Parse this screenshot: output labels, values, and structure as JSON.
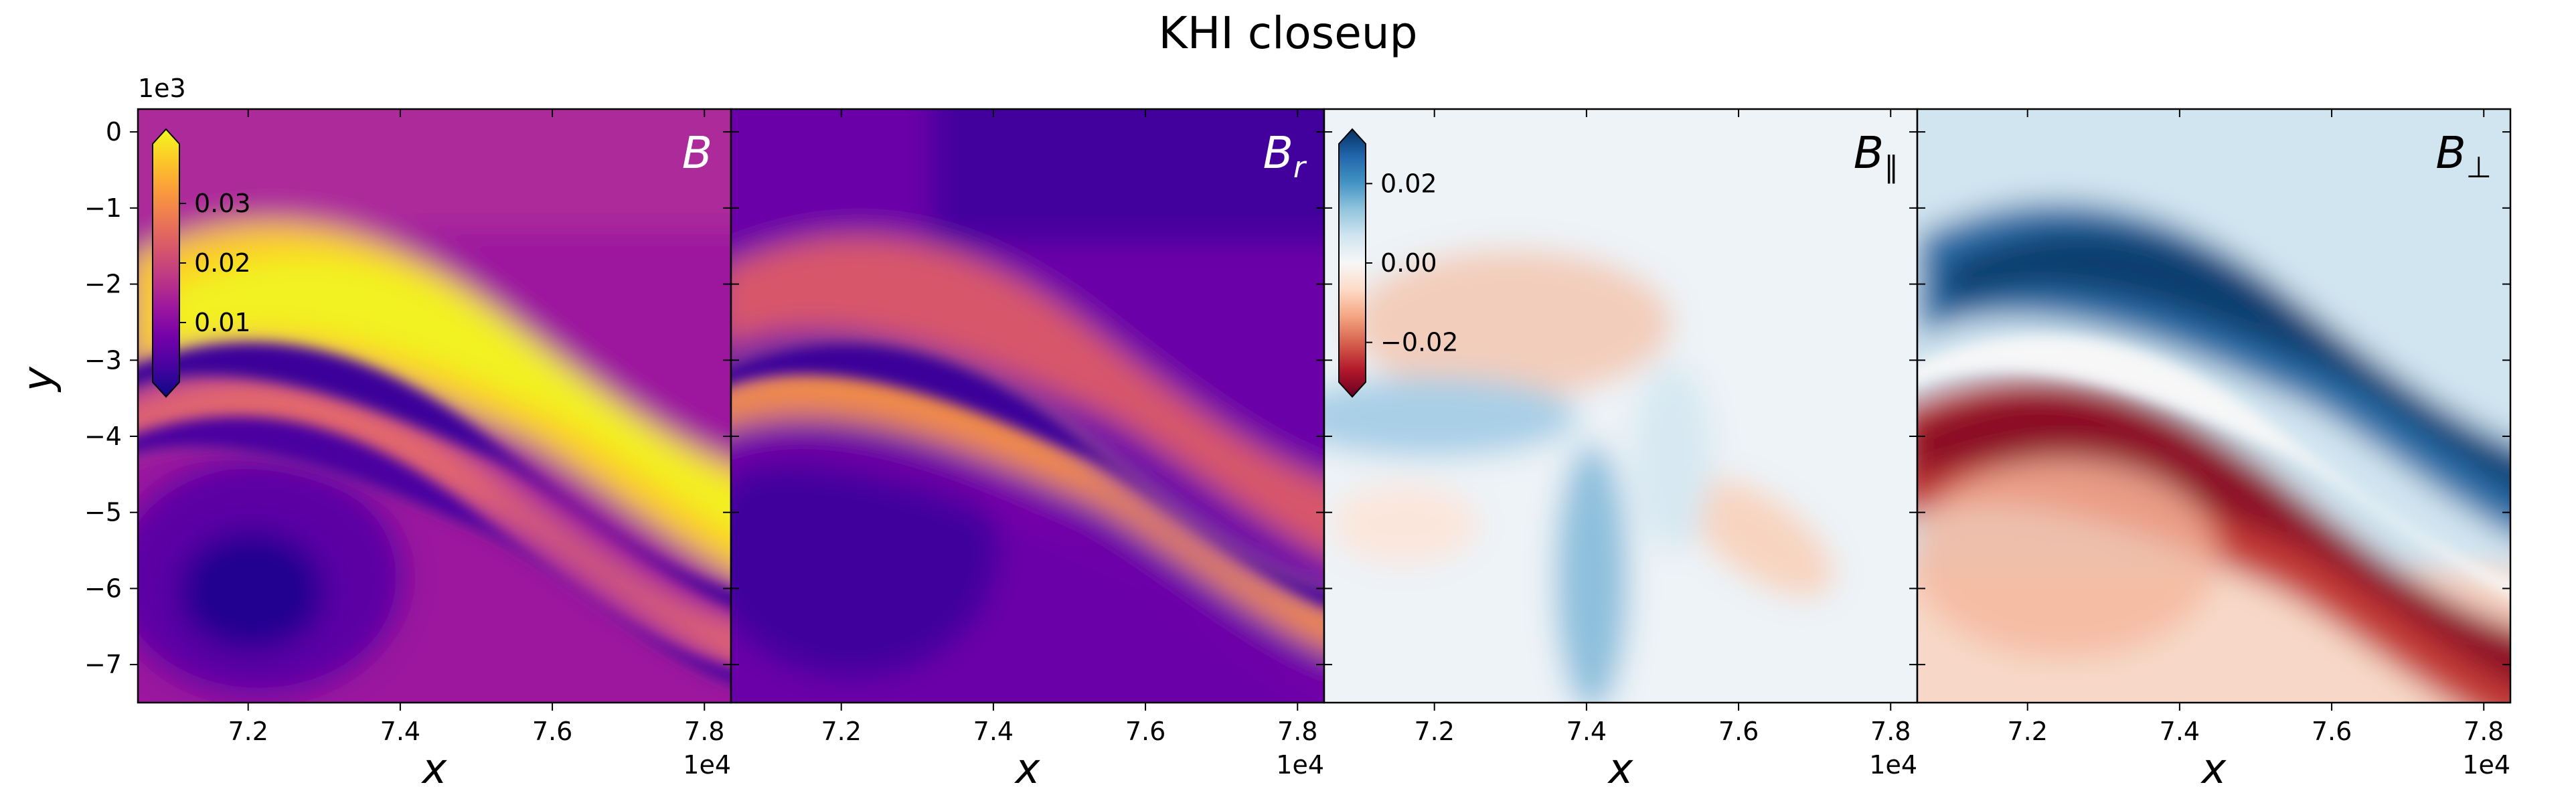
{
  "chart_data": {
    "type": "heatmap",
    "title": "KHI closeup",
    "shared_y": {
      "ylabel": "y",
      "ylim": [
        -7.5,
        0.3
      ],
      "ticks": [
        0,
        -1,
        -2,
        -3,
        -4,
        -5,
        -6,
        -7
      ],
      "tick_labels": [
        "0",
        "−1",
        "−2",
        "−3",
        "−4",
        "−5",
        "−6",
        "−7"
      ],
      "offset_text": "1e3"
    },
    "panels": [
      {
        "name": "B",
        "label_main": "B",
        "label_sub": "",
        "cmap": "plasma",
        "xlabel": "x",
        "xlim": [
          7.055,
          7.835
        ],
        "xticks": [
          7.2,
          7.4,
          7.6,
          7.8
        ],
        "xtick_labels": [
          "7.2",
          "7.4",
          "7.6",
          "7.8"
        ],
        "x_offset_text": "1e4",
        "colorbar": {
          "ticks": [
            0.01,
            0.02,
            0.03
          ],
          "tick_labels": [
            "0.01",
            "0.02",
            "0.03"
          ],
          "range": [
            0.0,
            0.04
          ]
        }
      },
      {
        "name": "B_r",
        "label_main": "B",
        "label_sub": "r",
        "cmap": "plasma",
        "xlabel": "x",
        "xlim": [
          7.055,
          7.835
        ],
        "xticks": [
          7.2,
          7.4,
          7.6,
          7.8
        ],
        "xtick_labels": [
          "7.2",
          "7.4",
          "7.6",
          "7.8"
        ],
        "x_offset_text": "1e4"
      },
      {
        "name": "B_parallel",
        "label_main": "B",
        "label_sub": "∥",
        "cmap": "RdBu",
        "xlabel": "x",
        "xlim": [
          7.055,
          7.835
        ],
        "xticks": [
          7.2,
          7.4,
          7.6,
          7.8
        ],
        "xtick_labels": [
          "7.2",
          "7.4",
          "7.6",
          "7.8"
        ],
        "x_offset_text": "1e4",
        "colorbar": {
          "ticks": [
            0.02,
            0.0,
            -0.02
          ],
          "tick_labels": [
            "0.02",
            "0.00",
            "−0.02"
          ],
          "range": [
            -0.03,
            0.03
          ]
        }
      },
      {
        "name": "B_perp",
        "label_main": "B",
        "label_sub": "⊥",
        "cmap": "RdBu",
        "xlabel": "x",
        "xlim": [
          7.055,
          7.835
        ],
        "xticks": [
          7.2,
          7.4,
          7.6,
          7.8
        ],
        "xtick_labels": [
          "7.2",
          "7.4",
          "7.6",
          "7.8"
        ],
        "x_offset_text": "1e4"
      }
    ],
    "colors": {
      "plasma_dark": "#0d0887",
      "plasma_mid": "#cc4778",
      "plasma_bright": "#f0f921",
      "rdbu_red": "#67001f",
      "rdbu_white": "#f7f7f7",
      "rdbu_blue": "#053061"
    }
  }
}
